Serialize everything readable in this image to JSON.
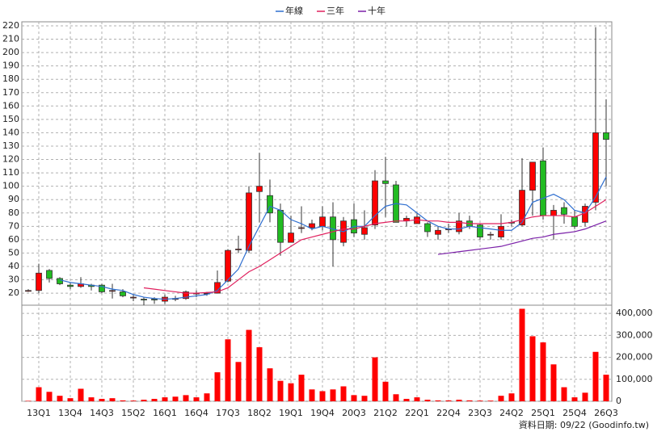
{
  "chart_data": [
    {
      "type": "candlestick",
      "categories": [
        null,
        "13Q1",
        null,
        null,
        "13Q4",
        null,
        null,
        "14Q3",
        null,
        null,
        "15Q2",
        null,
        null,
        "16Q1",
        null,
        null,
        "16Q4",
        null,
        null,
        "17Q3",
        null,
        null,
        "18Q2",
        null,
        null,
        "19Q1",
        null,
        null,
        "19Q4",
        null,
        null,
        "20Q3",
        null,
        null,
        "21Q2",
        null,
        null,
        "22Q1",
        null,
        null,
        "22Q4",
        null,
        null,
        "23Q3",
        null,
        null,
        "24Q2",
        null,
        null,
        "25Q1",
        null,
        null,
        "25Q4",
        null,
        null,
        "26Q3"
      ],
      "open": [
        21.5,
        22,
        37,
        31,
        26,
        25,
        26,
        26,
        22,
        21,
        17,
        15.5,
        15.5,
        14,
        16,
        16,
        20,
        20,
        20,
        29,
        53,
        52,
        96,
        93,
        82,
        58,
        69,
        69,
        70,
        77,
        58,
        75,
        64,
        71,
        104,
        101,
        74,
        72,
        72,
        64,
        68,
        66,
        74,
        71,
        64,
        62,
        73,
        71,
        97,
        119,
        78,
        84,
        77,
        73,
        88,
        140
      ],
      "high": [
        23,
        42,
        38,
        32,
        28,
        32,
        27,
        27,
        27,
        23,
        19,
        17,
        17,
        19,
        18,
        22,
        22,
        21,
        37,
        53,
        63,
        100,
        125,
        105,
        87,
        78,
        85,
        75,
        85,
        88,
        77,
        87,
        82,
        112,
        122,
        104,
        78,
        80,
        73,
        70,
        72,
        80,
        78,
        72,
        66,
        79,
        75,
        121,
        118,
        129,
        86,
        88,
        82,
        87,
        219,
        165
      ],
      "low": [
        21,
        20,
        28,
        26,
        23,
        24,
        22,
        20,
        16,
        17,
        14,
        11,
        12,
        12,
        14,
        15,
        17,
        18,
        20,
        28,
        50,
        50,
        73,
        73,
        48,
        58,
        65,
        67,
        67,
        40,
        55,
        62,
        60,
        68,
        77,
        73,
        70,
        72,
        62,
        60,
        65,
        64,
        68,
        60,
        60,
        60,
        70,
        70,
        78,
        75,
        60,
        72,
        68,
        70,
        82,
        100
      ],
      "close": [
        22,
        35,
        31,
        27,
        25,
        27,
        25,
        21,
        22,
        18,
        17,
        15,
        15,
        17,
        16,
        21,
        20,
        20,
        28,
        52,
        53,
        95,
        100,
        80,
        58,
        65,
        69,
        72,
        77,
        60,
        74,
        65,
        69,
        104,
        102,
        73,
        76,
        77,
        66,
        67,
        68,
        74,
        70,
        62,
        64,
        70,
        73,
        97,
        118,
        78,
        82,
        79,
        70,
        85,
        140,
        135
      ],
      "up_color": "#ff0000",
      "down_color": "#22bb22",
      "series": [
        {
          "name": "年線",
          "color": "#2f6fd0",
          "values": [
            null,
            null,
            null,
            30,
            28,
            27,
            26,
            25,
            23,
            22,
            19,
            17,
            16,
            15.5,
            16,
            17,
            18,
            19,
            22,
            30,
            38,
            55,
            70,
            85,
            82,
            75,
            72,
            68,
            70,
            68,
            66,
            70,
            70,
            78,
            85,
            87,
            86,
            80,
            74,
            70,
            68,
            68,
            70,
            69,
            68,
            67,
            67,
            73,
            88,
            91,
            94,
            90,
            82,
            80,
            92,
            107
          ]
        },
        {
          "name": "三年",
          "color": "#e0205e",
          "values": [
            null,
            null,
            null,
            null,
            null,
            null,
            null,
            null,
            null,
            null,
            null,
            24,
            23,
            22,
            21,
            20,
            20,
            20.5,
            21,
            24,
            30,
            36,
            40,
            45,
            50,
            55,
            60,
            62,
            64,
            66,
            68,
            68,
            70,
            72,
            73,
            74,
            74,
            75,
            74,
            74,
            73,
            73,
            72,
            72,
            72,
            72,
            73,
            75,
            77,
            78,
            78,
            78,
            77,
            80,
            85,
            90
          ]
        },
        {
          "name": "十年",
          "color": "#7a1fa8",
          "values": [
            null,
            null,
            null,
            null,
            null,
            null,
            null,
            null,
            null,
            null,
            null,
            null,
            null,
            null,
            null,
            null,
            null,
            null,
            null,
            null,
            null,
            null,
            null,
            null,
            null,
            null,
            null,
            null,
            null,
            null,
            null,
            null,
            null,
            null,
            null,
            null,
            null,
            null,
            null,
            49,
            50,
            51,
            52,
            53,
            54,
            55,
            57,
            59,
            61,
            62,
            64,
            65,
            66,
            68,
            71,
            74
          ]
        }
      ],
      "ylim": [
        11,
        223
      ],
      "yticks": [
        20,
        30,
        40,
        50,
        60,
        70,
        80,
        90,
        100,
        110,
        120,
        130,
        140,
        150,
        160,
        170,
        180,
        190,
        200,
        210,
        220
      ],
      "grid": true,
      "legend": "top"
    },
    {
      "type": "bar",
      "values": [
        2000,
        64000,
        43000,
        25000,
        14000,
        57000,
        18000,
        11000,
        14000,
        4000,
        3000,
        7000,
        11000,
        18000,
        21000,
        28000,
        18000,
        36000,
        132000,
        282000,
        179000,
        325000,
        246000,
        150000,
        93000,
        82000,
        121000,
        54000,
        46000,
        54000,
        68000,
        28000,
        25000,
        200000,
        89000,
        32000,
        11000,
        18000,
        7000,
        4000,
        4000,
        7000,
        4000,
        3000,
        3000,
        25000,
        36000,
        421000,
        296000,
        268000,
        168000,
        64000,
        18000,
        39000,
        225000,
        121000
      ],
      "color": "#ff0000",
      "ylim": [
        0,
        430000
      ],
      "yticks": [
        0,
        {
          "value": 100000,
          "label": "100,000"
        },
        {
          "value": 200000,
          "label": "200,000"
        },
        {
          "value": 300000,
          "label": "300,000"
        },
        {
          "value": 400000,
          "label": "400,000"
        }
      ],
      "grid": true,
      "footnote": "資料日期: 09/22  (Goodinfo.tw)"
    }
  ]
}
